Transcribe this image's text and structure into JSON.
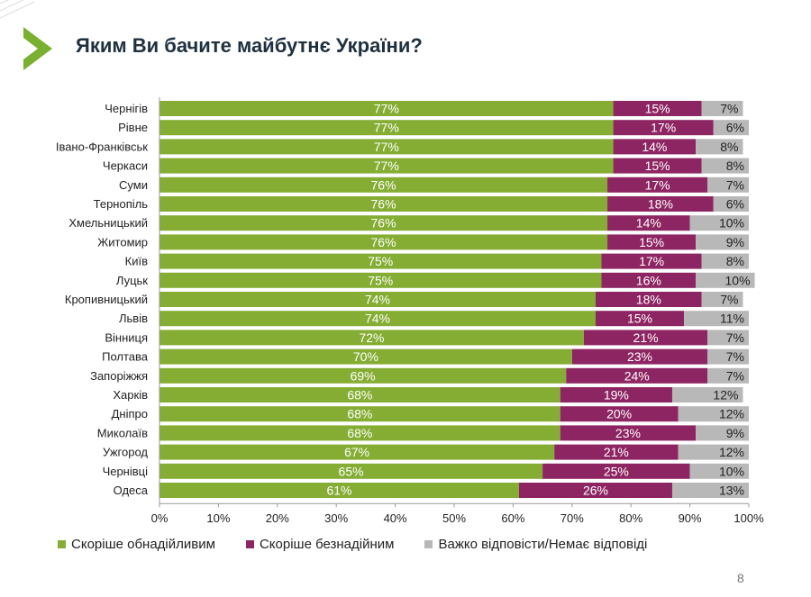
{
  "header": {
    "title": "Яким Ви бачите майбутнє України?"
  },
  "colors": {
    "accent": "#7ab02f",
    "hopeful": "#85ad34",
    "hopeless": "#8e2563",
    "undecided": "#b8b8b8"
  },
  "chart_data": {
    "type": "bar",
    "orientation": "horizontal",
    "stacked": true,
    "categories": [
      "Чернігів",
      "Рівне",
      "Івано-Франківськ",
      "Черкаси",
      "Суми",
      "Тернопіль",
      "Хмельницький",
      "Житомир",
      "Київ",
      "Луцьк",
      "Кропивницький",
      "Львів",
      "Вінниця",
      "Полтава",
      "Запоріжжя",
      "Харків",
      "Дніпро",
      "Миколаїв",
      "Ужгород",
      "Чернівці",
      "Одеса"
    ],
    "series": [
      {
        "name": "Скоріше обнадійливим",
        "color": "#85ad34",
        "values": [
          77,
          77,
          77,
          77,
          76,
          76,
          76,
          76,
          75,
          75,
          74,
          74,
          72,
          70,
          69,
          68,
          68,
          68,
          67,
          65,
          61
        ],
        "labels": [
          "77%",
          "77%",
          "77%",
          "77%",
          "76%",
          "76%",
          "76%",
          "76%",
          "75%",
          "75%",
          "74%",
          "74%",
          "72%",
          "70%",
          "69%",
          "68%",
          "68%",
          "68%",
          "67%",
          "65%",
          "61%"
        ]
      },
      {
        "name": "Скоріше безнадійним",
        "color": "#8e2563",
        "values": [
          15,
          17,
          14,
          15,
          17,
          18,
          14,
          15,
          17,
          16,
          18,
          15,
          21,
          23,
          24,
          19,
          20,
          23,
          21,
          25,
          26
        ],
        "labels": [
          "15%",
          "17%",
          "14%",
          "15%",
          "17%",
          "18%",
          "14%",
          "15%",
          "17%",
          "16%",
          "18%",
          "15%",
          "21%",
          "23%",
          "24%",
          "19%",
          "20%",
          "23%",
          "21%",
          "25%",
          "26%"
        ]
      },
      {
        "name": "Важко відповісти/Немає відповіді",
        "color": "#b8b8b8",
        "values": [
          7,
          6,
          8,
          8,
          7,
          6,
          10,
          9,
          8,
          10,
          7,
          11,
          7,
          7,
          7,
          12,
          12,
          9,
          12,
          10,
          13
        ],
        "labels": [
          "7%",
          "6%",
          "8%",
          "8%",
          "7%",
          "6%",
          "10%",
          "9%",
          "8%",
          "10%",
          "7%",
          "11%",
          "7%",
          "7%",
          "7%",
          "12%",
          "12%",
          "9%",
          "12%",
          "10%",
          "13%"
        ]
      }
    ],
    "xlim": [
      0,
      100
    ],
    "xticks": [
      "0%",
      "10%",
      "20%",
      "30%",
      "40%",
      "50%",
      "60%",
      "70%",
      "80%",
      "90%",
      "100%"
    ],
    "legend": "bottom",
    "grid": false
  },
  "footer": {
    "page_number": "8"
  }
}
